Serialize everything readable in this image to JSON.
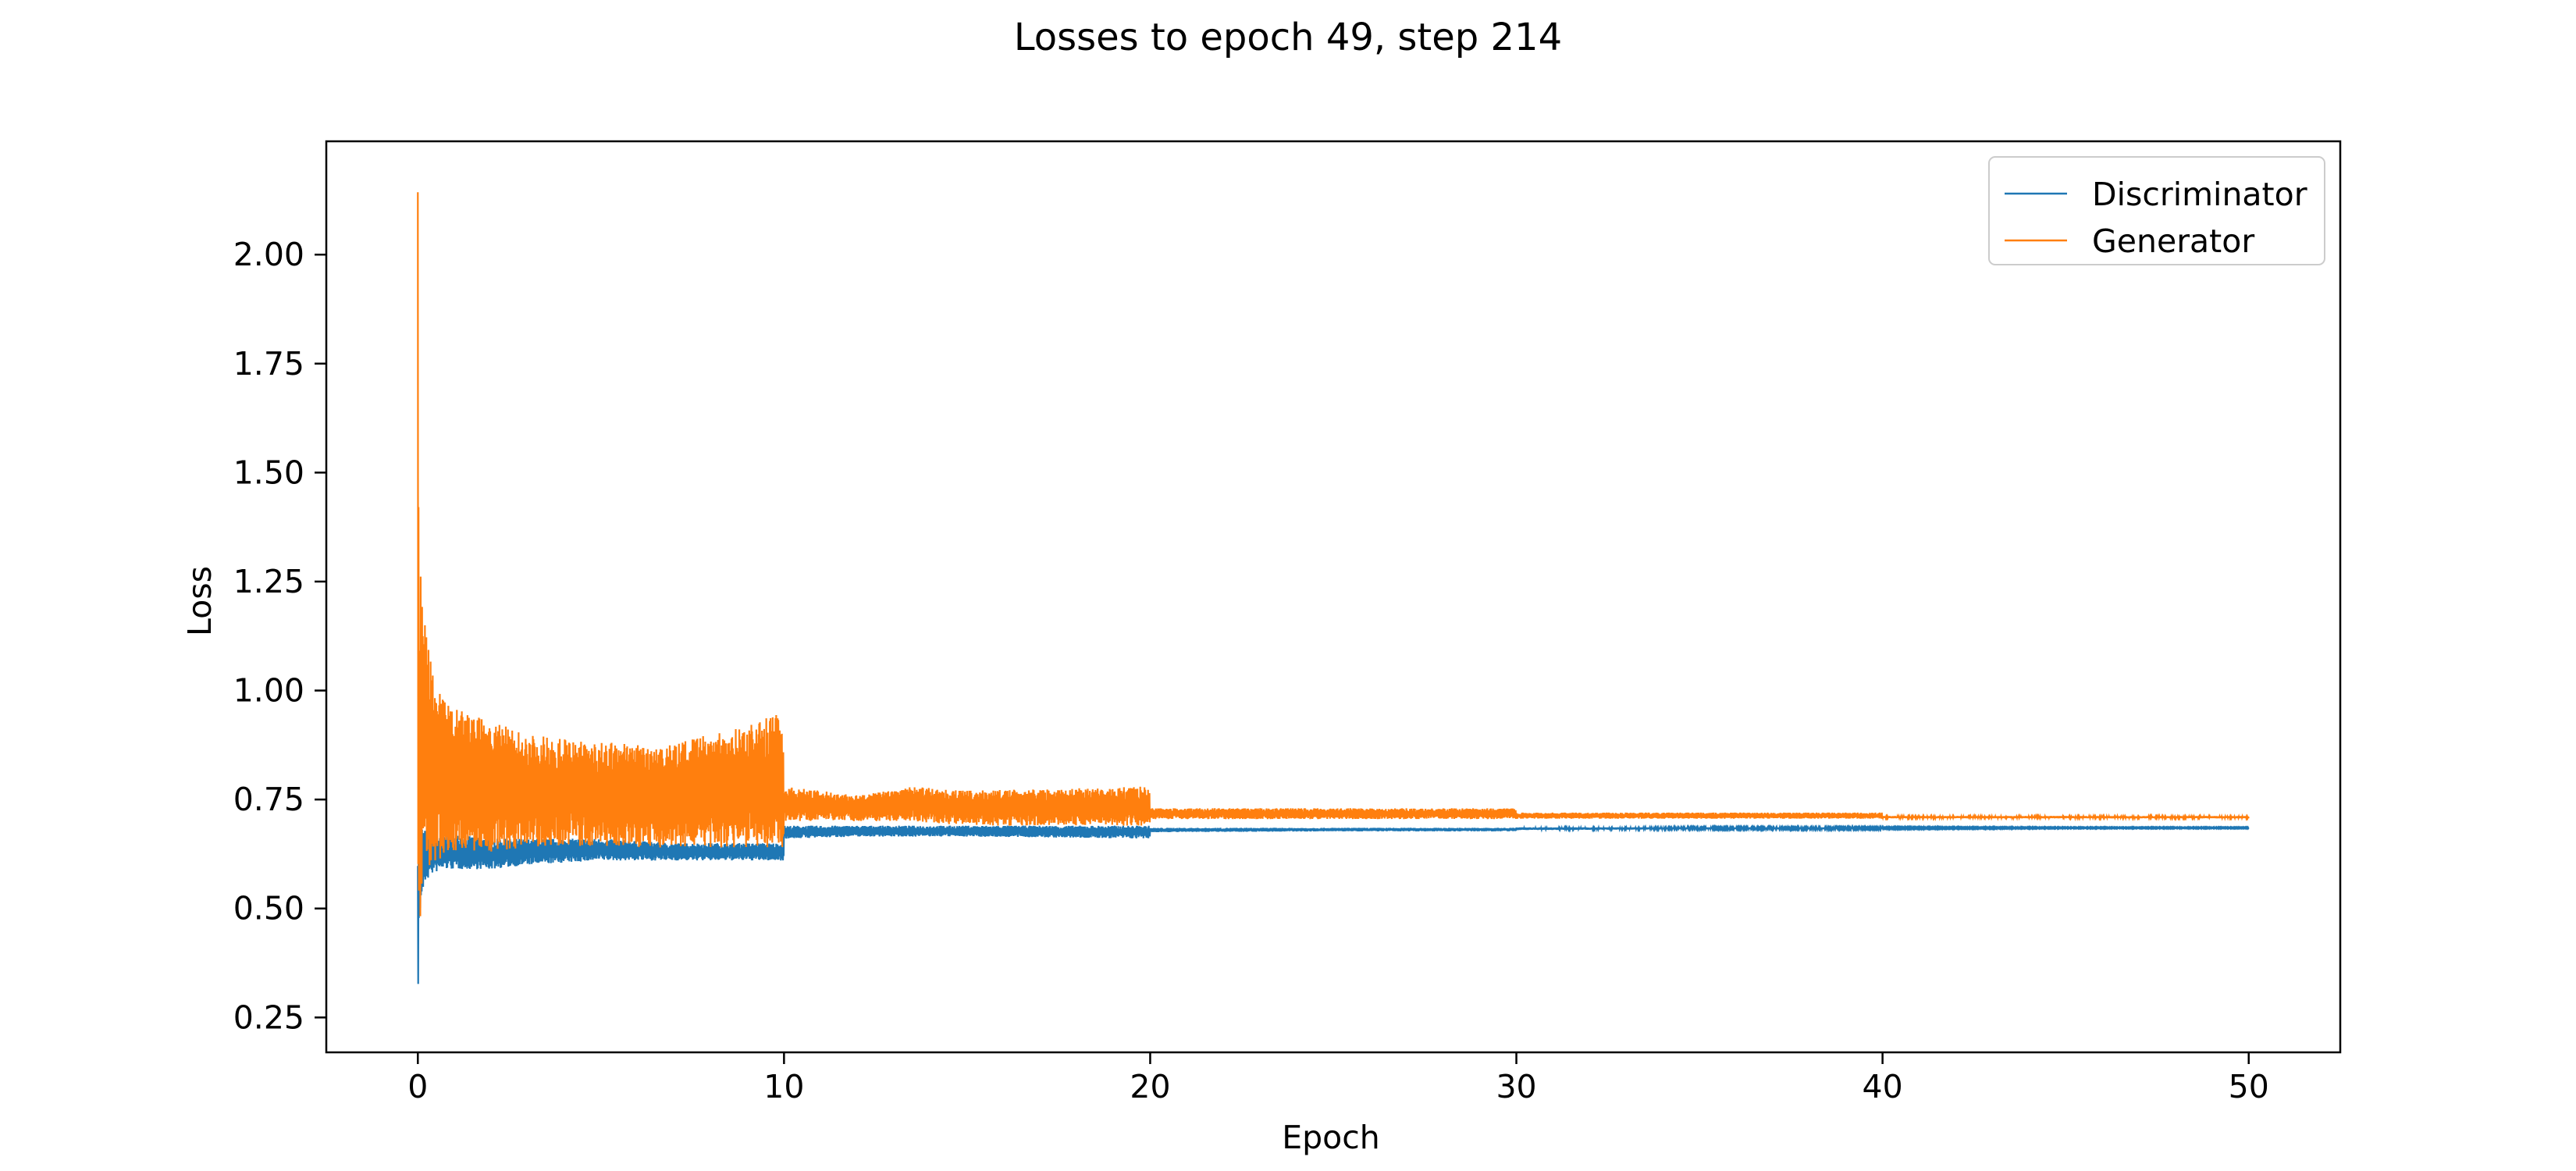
{
  "chart_data": {
    "type": "line",
    "title": "Losses to epoch 49, step 214",
    "xlabel": "Epoch",
    "ylabel": "Loss",
    "xlim": [
      -2.5,
      52.5
    ],
    "ylim": [
      0.17,
      2.26
    ],
    "xticks": [
      0,
      10,
      20,
      30,
      40,
      50
    ],
    "xtick_labels": [
      "0",
      "10",
      "20",
      "30",
      "40",
      "50"
    ],
    "yticks": [
      0.25,
      0.5,
      0.75,
      1.0,
      1.25,
      1.5,
      1.75,
      2.0
    ],
    "ytick_labels": [
      "0.25",
      "0.50",
      "0.75",
      "1.00",
      "1.25",
      "1.50",
      "1.75",
      "2.00"
    ],
    "grid": false,
    "legend_position": "top-right",
    "series": [
      {
        "name": "Discriminator",
        "color": "#1f77b4",
        "x": [
          0.0,
          0.02,
          0.05,
          0.1,
          0.2,
          0.4,
          0.7,
          1.0,
          2.0,
          3.0,
          5.0,
          7.0,
          9.0,
          9.99,
          10.0,
          12.0,
          15.0,
          19.99,
          20.0,
          25.0,
          29.99,
          30.0,
          35.0,
          39.99,
          40.0,
          45.0,
          50.0
        ],
        "low": [
          0.26,
          0.38,
          0.47,
          0.52,
          0.56,
          0.58,
          0.59,
          0.59,
          0.59,
          0.6,
          0.61,
          0.61,
          0.61,
          0.61,
          0.66,
          0.665,
          0.665,
          0.66,
          0.675,
          0.677,
          0.677,
          0.68,
          0.682,
          0.682,
          0.683,
          0.684,
          0.684
        ],
        "high": [
          0.76,
          0.72,
          0.7,
          0.69,
          0.68,
          0.67,
          0.67,
          0.67,
          0.66,
          0.66,
          0.66,
          0.65,
          0.65,
          0.65,
          0.69,
          0.69,
          0.69,
          0.69,
          0.685,
          0.685,
          0.685,
          0.686,
          0.686,
          0.686,
          0.686,
          0.686,
          0.686
        ]
      },
      {
        "name": "Generator",
        "color": "#ff7f0e",
        "x": [
          0.0,
          0.02,
          0.05,
          0.1,
          0.2,
          0.4,
          0.7,
          1.0,
          2.0,
          3.0,
          5.0,
          7.0,
          9.0,
          9.9,
          9.99,
          10.0,
          12.0,
          13.5,
          15.0,
          19.99,
          20.0,
          25.0,
          29.99,
          30.0,
          35.0,
          39.99,
          40.0,
          45.0,
          50.0
        ],
        "low": [
          0.62,
          0.52,
          0.45,
          0.5,
          0.58,
          0.6,
          0.62,
          0.63,
          0.63,
          0.64,
          0.64,
          0.64,
          0.64,
          0.64,
          0.64,
          0.7,
          0.7,
          0.7,
          0.69,
          0.69,
          0.705,
          0.705,
          0.705,
          0.706,
          0.706,
          0.706,
          0.707,
          0.707,
          0.707
        ],
        "high": [
          2.15,
          1.45,
          1.3,
          1.27,
          1.15,
          1.05,
          0.98,
          0.96,
          0.93,
          0.9,
          0.88,
          0.88,
          0.92,
          0.95,
          0.9,
          0.78,
          0.76,
          0.78,
          0.77,
          0.78,
          0.73,
          0.73,
          0.73,
          0.72,
          0.72,
          0.72,
          0.712,
          0.712,
          0.712
        ]
      }
    ]
  }
}
